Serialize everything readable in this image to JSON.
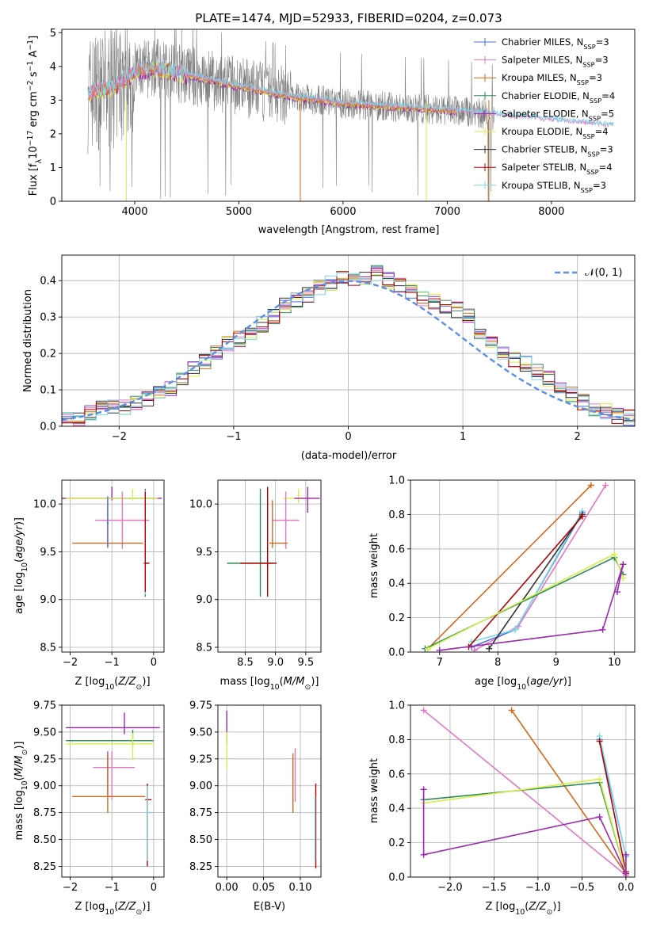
{
  "figure_title": "PLATE=1474, MJD=52933, FIBERID=0204, z=0.073",
  "colors": {
    "Chabrier MILES": "#4a6fe3",
    "Salpeter MILES": "#e377c2",
    "Kroupa MILES": "#d2691e",
    "Chabrier ELODIE": "#2e8b57",
    "Salpeter ELODIE": "#9c27b0",
    "Kroupa ELODIE": "#d4f04a",
    "Chabrier STELIB": "#333333",
    "Salpeter STELIB": "#b00000",
    "Kroupa STELIB": "#7fd8e8",
    "data": "#808080",
    "normal": "#5b8ee6"
  },
  "chart_data": [
    {
      "id": "spectrum",
      "type": "line",
      "title": "PLATE=1474, MJD=52933, FIBERID=0204, z=0.073",
      "xlabel": "wavelength [Angstrom, rest frame]",
      "ylabel": "Flux [f_λ 10^-17 erg cm^-2 s^-1 A^-1]",
      "xlim": [
        3300,
        8800
      ],
      "ylim": [
        0,
        5.1
      ],
      "xticks": [
        4000,
        5000,
        6000,
        7000,
        8000
      ],
      "yticks": [
        0,
        1,
        2,
        3,
        4,
        5
      ],
      "legend_position": "top-right",
      "legend": [
        {
          "label": "Chabrier MILES, N",
          "sub": "SSP",
          "suffix": "=3"
        },
        {
          "label": "Salpeter MILES, N",
          "sub": "SSP",
          "suffix": "=3"
        },
        {
          "label": "Kroupa MILES, N",
          "sub": "SSP",
          "suffix": "=3"
        },
        {
          "label": "Chabrier ELODIE, N",
          "sub": "SSP",
          "suffix": "=4"
        },
        {
          "label": "Salpeter ELODIE, N",
          "sub": "SSP",
          "suffix": "=5"
        },
        {
          "label": "Kroupa ELODIE, N",
          "sub": "SSP",
          "suffix": "=4"
        },
        {
          "label": "Chabrier STELIB, N",
          "sub": "SSP",
          "suffix": "=3"
        },
        {
          "label": "Salpeter STELIB, N",
          "sub": "SSP",
          "suffix": "=4"
        },
        {
          "label": "Kroupa STELIB, N",
          "sub": "SSP",
          "suffix": "=3"
        }
      ],
      "continuum": [
        [
          3550,
          3.2
        ],
        [
          3650,
          3.3
        ],
        [
          3800,
          3.35
        ],
        [
          3900,
          3.6
        ],
        [
          4000,
          3.85
        ],
        [
          4200,
          3.95
        ],
        [
          4500,
          3.75
        ],
        [
          5000,
          3.4
        ],
        [
          5500,
          3.1
        ],
        [
          6000,
          2.9
        ],
        [
          6500,
          2.8
        ],
        [
          7000,
          2.7
        ],
        [
          7500,
          2.55
        ],
        [
          8000,
          2.4
        ],
        [
          8500,
          2.25
        ]
      ],
      "data_range": [
        3550,
        7450
      ],
      "model_range": [
        3550,
        8600
      ]
    },
    {
      "id": "residuals",
      "type": "step",
      "xlabel": "(data-model)/error",
      "ylabel": "Normed distribution",
      "xlim": [
        -2.5,
        2.5
      ],
      "ylim": [
        0,
        0.47
      ],
      "xticks": [
        -2,
        -1,
        0,
        1,
        2
      ],
      "yticks": [
        0.0,
        0.1,
        0.2,
        0.3,
        0.4
      ],
      "legend_position": "top-right",
      "legend": [
        "𝒩(0, 1)"
      ],
      "bin_width": 0.1,
      "histogram": [
        0.018,
        0.025,
        0.035,
        0.05,
        0.052,
        0.053,
        0.06,
        0.075,
        0.088,
        0.1,
        0.125,
        0.16,
        0.18,
        0.2,
        0.225,
        0.24,
        0.26,
        0.28,
        0.3,
        0.33,
        0.345,
        0.36,
        0.38,
        0.395,
        0.405,
        0.4,
        0.41,
        0.42,
        0.4,
        0.385,
        0.37,
        0.35,
        0.34,
        0.33,
        0.32,
        0.3,
        0.26,
        0.23,
        0.2,
        0.185,
        0.17,
        0.15,
        0.13,
        0.11,
        0.09,
        0.065,
        0.05,
        0.04,
        0.03,
        0.025
      ]
    },
    {
      "id": "age_vs_Z",
      "type": "errorbar",
      "xlabel": "Z [log10(Z/Z⊙)]",
      "ylabel": "age [log10(age/yr)]",
      "xlim": [
        -2.2,
        0.25
      ],
      "ylim": [
        8.45,
        10.25
      ],
      "xticks": [
        -2,
        -1,
        0
      ],
      "yticks": [
        8.5,
        9.0,
        9.5,
        10.0
      ],
      "points": [
        {
          "model": "Salpeter ELODIE",
          "x": -1.0,
          "xerr": [
            2.1,
            1.2
          ],
          "y": 10.06,
          "yerr": [
            0.02,
            0.12
          ]
        },
        {
          "model": "Kroupa ELODIE",
          "x": -0.5,
          "xerr": [
            1.6,
            0.6
          ],
          "y": 10.06,
          "yerr": [
            0.02,
            0.1
          ]
        },
        {
          "model": "Salpeter MILES",
          "x": -0.75,
          "xerr": [
            0.65,
            0.65
          ],
          "y": 9.83,
          "yerr": [
            0.3,
            0.3
          ]
        },
        {
          "model": "Kroupa MILES",
          "x": -1.1,
          "xerr": [
            0.85,
            0.85
          ],
          "y": 9.59,
          "yerr": [
            0.05,
            0.45
          ]
        },
        {
          "model": "Chabrier MILES",
          "x": -1.1,
          "xerr": [
            0.02,
            0.02
          ],
          "y": 9.8,
          "yerr": [
            0.25,
            0.28
          ]
        },
        {
          "model": "Chabrier ELODIE",
          "x": -0.2,
          "xerr": [
            0.05,
            0.05
          ],
          "y": 9.38,
          "yerr": [
            0.35,
            0.78
          ]
        },
        {
          "model": "Kroupa STELIB",
          "x": -0.2,
          "xerr": [
            0.05,
            0.05
          ],
          "y": 9.38,
          "yerr": [
            0.33,
            0.76
          ]
        },
        {
          "model": "Salpeter STELIB",
          "x": -0.2,
          "xerr": [
            0.02,
            0.1
          ],
          "y": 9.38,
          "yerr": [
            0.3,
            0.75
          ]
        }
      ]
    },
    {
      "id": "age_vs_mass",
      "type": "errorbar",
      "xlabel": "mass [log10(M/M⊙)]",
      "ylabel": "",
      "xlim": [
        8.05,
        9.75
      ],
      "ylim": [
        8.45,
        10.25
      ],
      "xticks": [
        8.5,
        9.0,
        9.5
      ],
      "yticks": [
        8.5,
        9.0,
        9.5,
        10.0
      ],
      "points": [
        {
          "model": "Kroupa ELODIE",
          "x": 9.38,
          "xerr": [
            0.25,
            0.3
          ],
          "y": 10.06,
          "yerr": [
            0.05,
            0.1
          ]
        },
        {
          "model": "Salpeter ELODIE",
          "x": 9.53,
          "xerr": [
            0.22,
            0.2
          ],
          "y": 10.06,
          "yerr": [
            0.15,
            0.12
          ]
        },
        {
          "model": "Salpeter MILES",
          "x": 9.17,
          "xerr": [
            0.22,
            0.22
          ],
          "y": 9.83,
          "yerr": [
            0.3,
            0.3
          ]
        },
        {
          "model": "Kroupa MILES",
          "x": 8.95,
          "xerr": [
            0.05,
            0.25
          ],
          "y": 9.59,
          "yerr": [
            0.05,
            0.45
          ]
        },
        {
          "model": "Chabrier ELODIE",
          "x": 8.75,
          "xerr": [
            0.55,
            0.2
          ],
          "y": 9.38,
          "yerr": [
            0.35,
            0.78
          ]
        },
        {
          "model": "Salpeter STELIB",
          "x": 8.87,
          "xerr": [
            0.45,
            0.15
          ],
          "y": 9.38,
          "yerr": [
            0.35,
            0.8
          ]
        }
      ]
    },
    {
      "id": "weight_vs_age",
      "type": "line",
      "xlabel": "age [log10(age/yr)]",
      "ylabel": "mass weight",
      "xlim": [
        6.5,
        10.35
      ],
      "ylim": [
        0,
        1
      ],
      "xticks": [
        7,
        8,
        9,
        10
      ],
      "yticks": [
        0.0,
        0.2,
        0.4,
        0.6,
        0.8,
        1.0
      ],
      "series": [
        {
          "model": "Salpeter MILES",
          "x": [
            7.6,
            8.35,
            9.85
          ],
          "y": [
            0.01,
            0.15,
            0.97
          ]
        },
        {
          "model": "Kroupa MILES",
          "x": [
            6.8,
            9.6
          ],
          "y": [
            0.02,
            0.97
          ]
        },
        {
          "model": "Chabrier MILES",
          "x": [
            7.55,
            8.3,
            9.45
          ],
          "y": [
            0.03,
            0.13,
            0.81
          ]
        },
        {
          "model": "Kroupa STELIB",
          "x": [
            7.55,
            8.3,
            9.45
          ],
          "y": [
            0.06,
            0.13,
            0.82
          ]
        },
        {
          "model": "Chabrier STELIB",
          "x": [
            7.85,
            9.45
          ],
          "y": [
            0.02,
            0.8
          ]
        },
        {
          "model": "Salpeter STELIB",
          "x": [
            7.5,
            9.45
          ],
          "y": [
            0.03,
            0.79
          ]
        },
        {
          "model": "Chabrier ELODIE",
          "x": [
            6.75,
            10.0,
            10.15
          ],
          "y": [
            0.02,
            0.55,
            0.45
          ]
        },
        {
          "model": "Kroupa ELODIE",
          "x": [
            6.8,
            10.0,
            10.15
          ],
          "y": [
            0.02,
            0.57,
            0.43
          ]
        },
        {
          "model": "Salpeter ELODIE",
          "x": [
            7.0,
            9.8,
            10.15,
            10.05,
            10.15
          ],
          "y": [
            0.01,
            0.13,
            0.51,
            0.35,
            0.51
          ]
        }
      ]
    },
    {
      "id": "mass_vs_Z",
      "type": "errorbar",
      "xlabel": "Z [log10(Z/Z⊙)]",
      "ylabel": "mass [log10(M/M⊙)]",
      "xlim": [
        -2.2,
        0.25
      ],
      "ylim": [
        8.15,
        9.75
      ],
      "xticks": [
        -2,
        -1,
        0
      ],
      "yticks": [
        8.25,
        8.5,
        8.75,
        9.0,
        9.25,
        9.5,
        9.75
      ],
      "points": [
        {
          "model": "Salpeter ELODIE",
          "x": -0.7,
          "xerr": [
            1.4,
            0.85
          ],
          "y": 9.54,
          "yerr": [
            0.06,
            0.14
          ]
        },
        {
          "model": "Chabrier ELODIE",
          "x": -0.5,
          "xerr": [
            1.6,
            0.5
          ],
          "y": 9.42,
          "yerr": [
            0.05,
            0.1
          ]
        },
        {
          "model": "Kroupa ELODIE",
          "x": -0.5,
          "xerr": [
            1.6,
            0.5
          ],
          "y": 9.39,
          "yerr": [
            0.15,
            0.1
          ]
        },
        {
          "model": "Salpeter MILES",
          "x": -1.0,
          "xerr": [
            0.45,
            0.55
          ],
          "y": 9.17,
          "yerr": [
            0.3,
            0.15
          ]
        },
        {
          "model": "Chabrier MILES",
          "x": -1.1,
          "xerr": [
            0.02,
            0.02
          ],
          "y": 9.17,
          "yerr": [
            0.25,
            0.15
          ]
        },
        {
          "model": "Kroupa MILES",
          "x": -1.1,
          "xerr": [
            0.85,
            0.9
          ],
          "y": 8.9,
          "yerr": [
            0.15,
            0.4
          ]
        },
        {
          "model": "Salpeter STELIB",
          "x": -0.15,
          "xerr": [
            0.05,
            0.1
          ],
          "y": 8.87,
          "yerr": [
            0.62,
            0.15
          ]
        },
        {
          "model": "Kroupa STELIB",
          "x": -0.15,
          "xerr": [
            0.05,
            0.12
          ],
          "y": 8.75,
          "yerr": [
            0.45,
            0.25
          ]
        }
      ]
    },
    {
      "id": "mass_vs_EBV",
      "type": "errorbar",
      "xlabel": "E(B-V)",
      "ylabel": "",
      "xlim": [
        -0.012,
        0.128
      ],
      "ylim": [
        8.15,
        9.75
      ],
      "xticks": [
        0.0,
        0.05,
        0.1
      ],
      "yticks": [
        8.25,
        8.5,
        8.75,
        9.0,
        9.25,
        9.5,
        9.75
      ],
      "points": [
        {
          "model": "Salpeter ELODIE",
          "x": 0.0,
          "xerr": [
            0,
            0
          ],
          "y": 9.55,
          "yerr": [
            0.15,
            0.15
          ]
        },
        {
          "model": "Kroupa ELODIE",
          "x": 0.0,
          "xerr": [
            0,
            0
          ],
          "y": 9.35,
          "yerr": [
            0.2,
            0.15
          ]
        },
        {
          "model": "Salpeter MILES",
          "x": 0.093,
          "xerr": [
            0,
            0
          ],
          "y": 9.05,
          "yerr": [
            0.2,
            0.3
          ]
        },
        {
          "model": "Kroupa MILES",
          "x": 0.09,
          "xerr": [
            0,
            0
          ],
          "y": 9.0,
          "yerr": [
            0.25,
            0.3
          ]
        },
        {
          "model": "Salpeter STELIB",
          "x": 0.121,
          "xerr": [
            0,
            0
          ],
          "y": 8.65,
          "yerr": [
            0.42,
            0.37
          ]
        },
        {
          "model": "Kroupa STELIB",
          "x": 0.12,
          "xerr": [
            0,
            0
          ],
          "y": 8.6,
          "yerr": [
            0.3,
            0.3
          ]
        }
      ]
    },
    {
      "id": "weight_vs_Z",
      "type": "line",
      "xlabel": "Z [log10(Z/Z⊙)]",
      "ylabel": "mass weight",
      "xlim": [
        -2.45,
        0.1
      ],
      "ylim": [
        0,
        1
      ],
      "xticks": [
        -2.0,
        -1.5,
        -1.0,
        -0.5,
        0.0
      ],
      "yticks": [
        0.0,
        0.2,
        0.4,
        0.6,
        0.8,
        1.0
      ],
      "series": [
        {
          "model": "Salpeter MILES",
          "x": [
            -2.3,
            0.0
          ],
          "y": [
            0.97,
            0.01
          ]
        },
        {
          "model": "Kroupa MILES",
          "x": [
            -1.3,
            0.0
          ],
          "y": [
            0.97,
            0.02
          ]
        },
        {
          "model": "Chabrier MILES",
          "x": [
            -0.3,
            0.0
          ],
          "y": [
            0.8,
            0.12
          ]
        },
        {
          "model": "Kroupa STELIB",
          "x": [
            -0.3,
            0.0
          ],
          "y": [
            0.82,
            0.12
          ]
        },
        {
          "model": "Salpeter STELIB",
          "x": [
            -0.3,
            0.0
          ],
          "y": [
            0.79,
            0.03
          ]
        },
        {
          "model": "Chabrier ELODIE",
          "x": [
            -2.3,
            -0.3,
            0.0
          ],
          "y": [
            0.45,
            0.55,
            0.02
          ]
        },
        {
          "model": "Kroupa ELODIE",
          "x": [
            -2.3,
            -0.3,
            0.0
          ],
          "y": [
            0.43,
            0.57,
            0.02
          ]
        },
        {
          "model": "Salpeter ELODIE",
          "x": [
            -2.3,
            -2.3,
            -0.3,
            0.0,
            0.0
          ],
          "y": [
            0.51,
            0.13,
            0.35,
            0.02,
            0.13
          ]
        }
      ]
    }
  ]
}
